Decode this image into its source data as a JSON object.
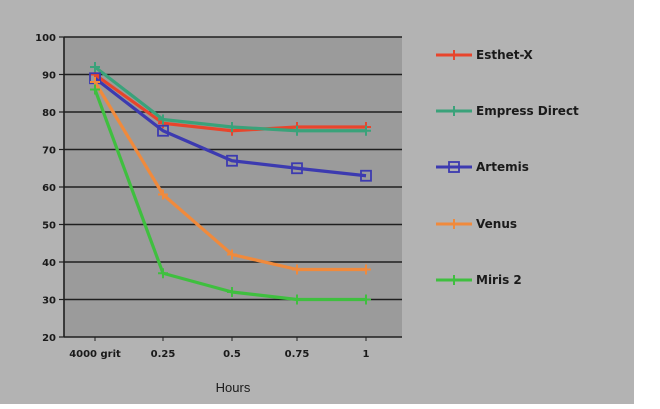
{
  "chart_data": {
    "type": "line",
    "title": "",
    "xlabel": "Hours",
    "ylabel": "",
    "categories": [
      "4000 grit",
      "0.25",
      "0.5",
      "0.75",
      "1"
    ],
    "ylim": [
      20,
      100
    ],
    "yticks": [
      20,
      30,
      40,
      50,
      60,
      70,
      80,
      90,
      100
    ],
    "grid": true,
    "legend_position": "right",
    "series": [
      {
        "name": "Esthet-X",
        "color": "#e8452c",
        "marker": "cross",
        "values": [
          90,
          77,
          75,
          76,
          76
        ]
      },
      {
        "name": "Empress Direct",
        "color": "#3aa27a",
        "marker": "cross",
        "values": [
          92,
          78,
          76,
          75,
          75
        ]
      },
      {
        "name": "Artemis",
        "color": "#3c3ab0",
        "marker": "square",
        "values": [
          89,
          75,
          67,
          65,
          63
        ]
      },
      {
        "name": "Venus",
        "color": "#f08a3c",
        "marker": "cross",
        "values": [
          88,
          58,
          42,
          38,
          38
        ]
      },
      {
        "name": "Miris 2",
        "color": "#3fbf3f",
        "marker": "cross",
        "values": [
          86,
          37,
          32,
          30,
          30
        ]
      }
    ]
  },
  "colors": {
    "panel": "#b3b3b3",
    "plot": "#9b9b9b",
    "grid": "#1f1f1f"
  }
}
